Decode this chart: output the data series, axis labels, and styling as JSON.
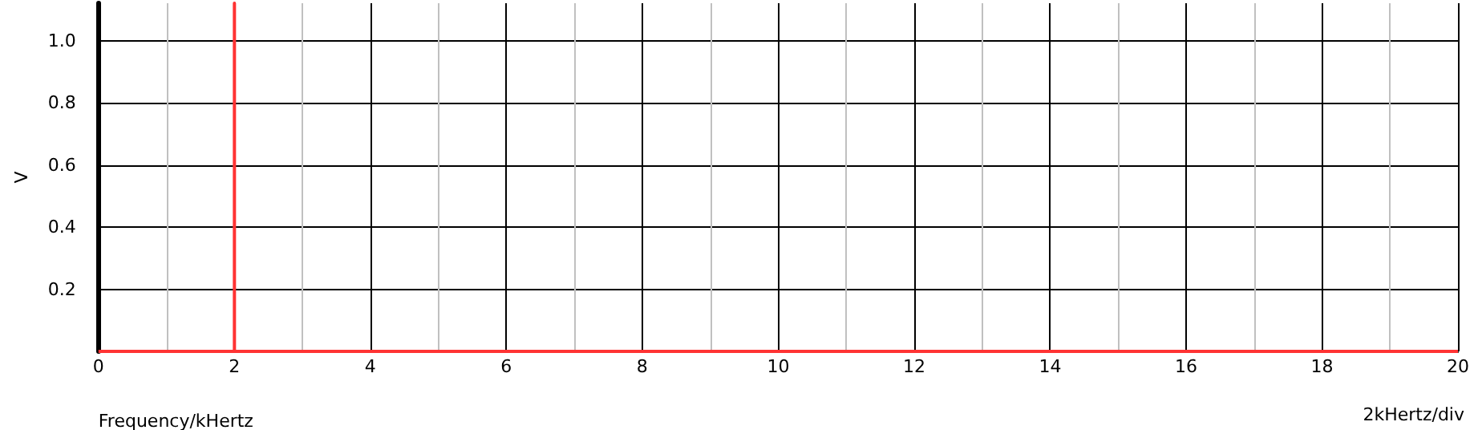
{
  "chart_data": {
    "type": "line",
    "xlabel": "Frequency/kHertz",
    "ylabel": "V",
    "annotations": [
      "2kHertz/div"
    ],
    "x": [
      0,
      2,
      2,
      2,
      20
    ],
    "series": [
      {
        "color": "#ff3333",
        "values": [
          0,
          0,
          1.12,
          0,
          0
        ]
      }
    ],
    "xlim": [
      0,
      20
    ],
    "xticks": [
      0,
      2,
      4,
      6,
      8,
      10,
      12,
      14,
      16,
      18,
      20
    ],
    "ylim": [
      0,
      1.12
    ],
    "yticks": [
      {
        "value": 0,
        "label": null
      },
      0.2,
      0.4,
      0.6,
      0.8,
      {
        "value": 1,
        "label": "1.0"
      }
    ],
    "grid": true,
    "marker": "none",
    "line_style": "solid"
  }
}
